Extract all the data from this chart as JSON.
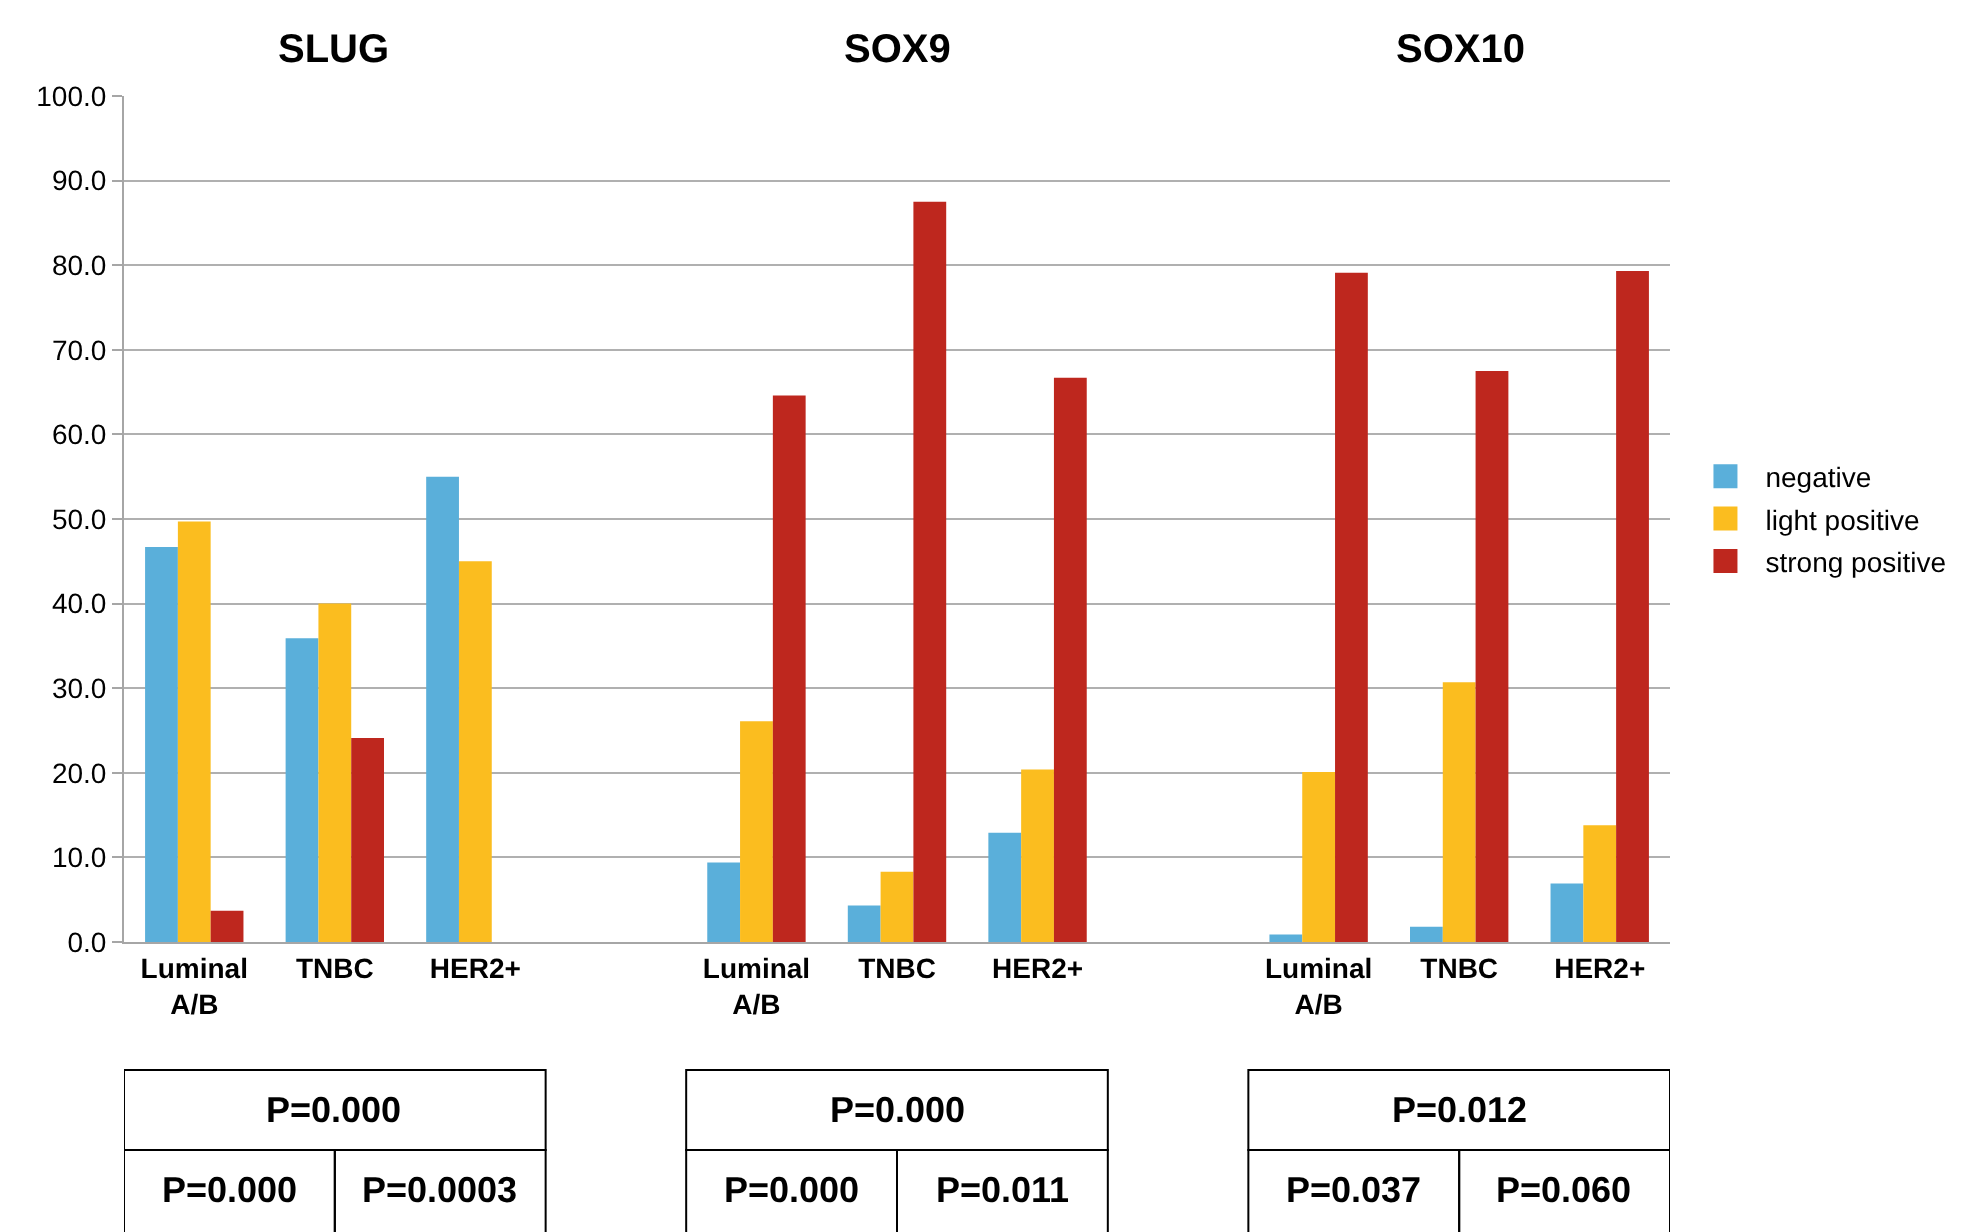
{
  "chart_data": {
    "type": "bar",
    "categories": [
      "Luminal A/B",
      "TNBC",
      "HER2+",
      null,
      "Luminal A/B",
      "TNBC",
      "HER2+",
      null,
      "Luminal A/B",
      "TNBC",
      "HER2+"
    ],
    "series": [
      {
        "name": "negative",
        "color": "#5aafda",
        "values": [
          46.7,
          35.9,
          55.0,
          null,
          9.4,
          4.3,
          12.9,
          null,
          0.9,
          1.8,
          6.9
        ]
      },
      {
        "name": "light positive",
        "color": "#fbbd1f",
        "values": [
          49.7,
          40.0,
          45.0,
          null,
          26.1,
          8.3,
          20.4,
          null,
          20.1,
          30.7,
          13.8
        ]
      },
      {
        "name": "strong positive",
        "color": "#be271e",
        "values": [
          3.7,
          24.1,
          0,
          null,
          64.6,
          87.5,
          66.7,
          null,
          79.1,
          67.5,
          79.3
        ]
      }
    ],
    "ylim": [
      0,
      100
    ],
    "yticks": [
      {
        "value": 0,
        "label": "0.0"
      },
      {
        "value": 10,
        "label": "10.0"
      },
      {
        "value": 20,
        "label": "20.0"
      },
      {
        "value": 30,
        "label": "30.0"
      },
      {
        "value": 40,
        "label": "40.0"
      },
      {
        "value": 50,
        "label": "50.0"
      },
      {
        "value": 60,
        "label": "60.0"
      },
      {
        "value": 70,
        "label": "70.0"
      },
      {
        "value": 80,
        "label": "80.0"
      },
      {
        "value": 90,
        "label": "90.0"
      },
      {
        "value": 100,
        "label": "100.0"
      }
    ],
    "grid": "y",
    "legend": "right",
    "annotations": [
      "SLUG",
      "SOX9",
      "SOX10",
      "P=0.000",
      "P=0.000",
      "P=0.0003",
      "P=0.000",
      "P=0.000",
      "P=0.011",
      "P=0.012",
      "P=0.037",
      "P=0.060"
    ]
  }
}
